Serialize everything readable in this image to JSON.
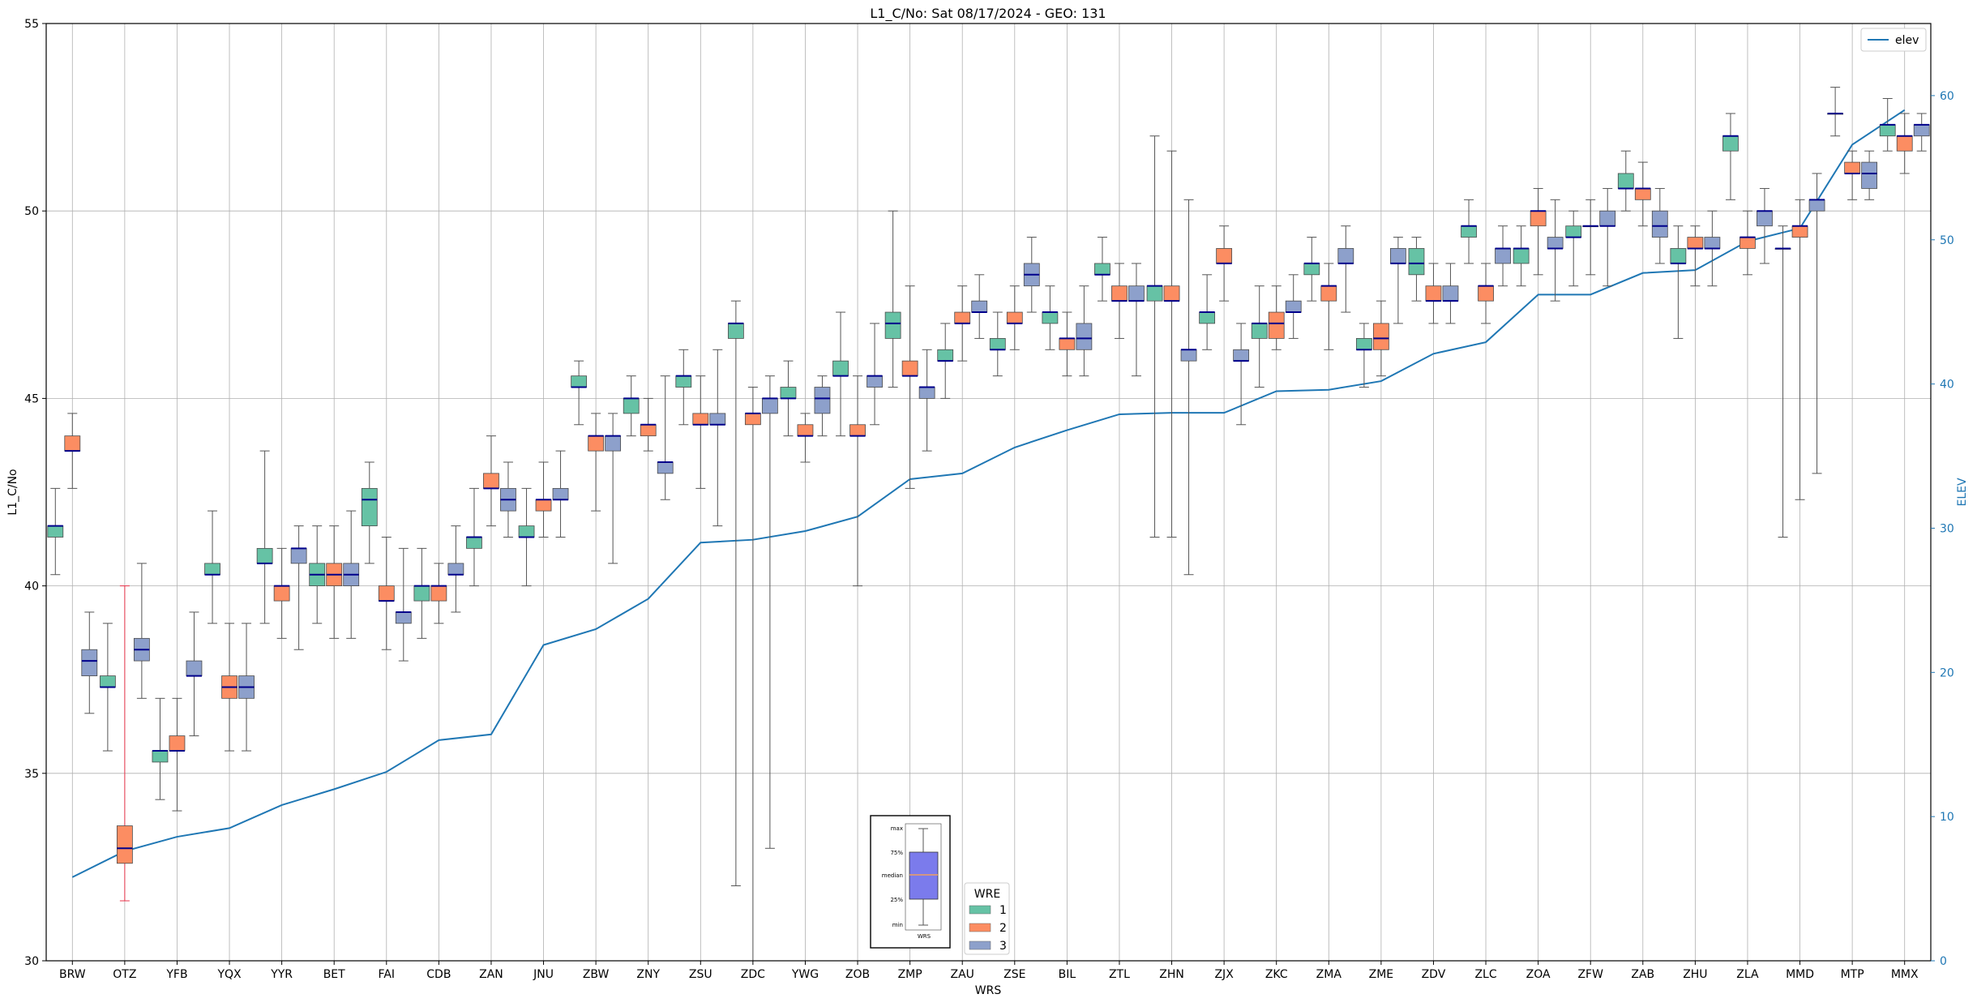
{
  "chart_data": {
    "type": "box",
    "title": "L1_C/No: Sat 08/17/2024 - GEO: 131",
    "xlabel": "WRS",
    "ylabel": "L1_C/No",
    "y2label": "ELEV",
    "ylim": [
      30,
      55
    ],
    "y2lim": [
      0,
      65
    ],
    "yticks": [
      30,
      35,
      40,
      45,
      50,
      55
    ],
    "y2ticks": [
      0,
      10,
      20,
      30,
      40,
      50,
      60
    ],
    "grid": true,
    "categories": [
      "BRW",
      "OTZ",
      "YFB",
      "YQX",
      "YYR",
      "BET",
      "FAI",
      "CDB",
      "ZAN",
      "JNU",
      "ZBW",
      "ZNY",
      "ZSU",
      "ZDC",
      "YWG",
      "ZOB",
      "ZMP",
      "ZAU",
      "ZSE",
      "BIL",
      "ZTL",
      "ZHN",
      "ZJX",
      "ZKC",
      "ZMA",
      "ZME",
      "ZDV",
      "ZLC",
      "ZOA",
      "ZFW",
      "ZAB",
      "ZHU",
      "ZLA",
      "MMD",
      "MTP",
      "MMX"
    ],
    "wre_colors": {
      "1": "#66c2a5",
      "2": "#fc8d62",
      "3": "#8da0cb"
    },
    "median_color": "#00008b",
    "whisker_color": "#555555",
    "outlier_whisker_color": "#e8344a",
    "boxes": [
      {
        "site": "BRW",
        "wre": 1,
        "min": 40.3,
        "q1": 41.3,
        "med": 41.6,
        "q3": 41.6,
        "max": 42.6
      },
      {
        "site": "BRW",
        "wre": 2,
        "min": 42.6,
        "q1": 43.6,
        "med": 43.6,
        "q3": 44.0,
        "max": 44.6
      },
      {
        "site": "BRW",
        "wre": 3,
        "min": 36.6,
        "q1": 37.6,
        "med": 38.0,
        "q3": 38.3,
        "max": 39.3
      },
      {
        "site": "OTZ",
        "wre": 1,
        "min": 35.6,
        "q1": 37.3,
        "med": 37.3,
        "q3": 37.6,
        "max": 39.0
      },
      {
        "site": "OTZ",
        "wre": 2,
        "min": 31.6,
        "q1": 32.6,
        "med": 33.0,
        "q3": 33.6,
        "max": 40.0,
        "whisker_color": "#e8344a"
      },
      {
        "site": "OTZ",
        "wre": 3,
        "min": 37.0,
        "q1": 38.0,
        "med": 38.3,
        "q3": 38.6,
        "max": 40.6
      },
      {
        "site": "YFB",
        "wre": 1,
        "min": 34.3,
        "q1": 35.3,
        "med": 35.6,
        "q3": 35.6,
        "max": 37.0
      },
      {
        "site": "YFB",
        "wre": 2,
        "min": 34.0,
        "q1": 35.6,
        "med": 35.6,
        "q3": 36.0,
        "max": 37.0
      },
      {
        "site": "YFB",
        "wre": 3,
        "min": 36.0,
        "q1": 37.6,
        "med": 37.6,
        "q3": 38.0,
        "max": 39.3
      },
      {
        "site": "YQX",
        "wre": 1,
        "min": 39.0,
        "q1": 40.3,
        "med": 40.3,
        "q3": 40.6,
        "max": 42.0
      },
      {
        "site": "YQX",
        "wre": 2,
        "min": 35.6,
        "q1": 37.0,
        "med": 37.3,
        "q3": 37.6,
        "max": 39.0
      },
      {
        "site": "YQX",
        "wre": 3,
        "min": 35.6,
        "q1": 37.0,
        "med": 37.3,
        "q3": 37.6,
        "max": 39.0
      },
      {
        "site": "YYR",
        "wre": 1,
        "min": 39.0,
        "q1": 40.6,
        "med": 40.6,
        "q3": 41.0,
        "max": 43.6
      },
      {
        "site": "YYR",
        "wre": 2,
        "min": 38.6,
        "q1": 39.6,
        "med": 40.0,
        "q3": 40.0,
        "max": 41.0
      },
      {
        "site": "YYR",
        "wre": 3,
        "min": 38.3,
        "q1": 40.6,
        "med": 41.0,
        "q3": 41.0,
        "max": 41.6
      },
      {
        "site": "BET",
        "wre": 1,
        "min": 39.0,
        "q1": 40.0,
        "med": 40.3,
        "q3": 40.6,
        "max": 41.6
      },
      {
        "site": "BET",
        "wre": 2,
        "min": 38.6,
        "q1": 40.0,
        "med": 40.3,
        "q3": 40.6,
        "max": 41.6
      },
      {
        "site": "BET",
        "wre": 3,
        "min": 38.6,
        "q1": 40.0,
        "med": 40.3,
        "q3": 40.6,
        "max": 42.0
      },
      {
        "site": "FAI",
        "wre": 1,
        "min": 40.6,
        "q1": 41.6,
        "med": 42.3,
        "q3": 42.6,
        "max": 43.3
      },
      {
        "site": "FAI",
        "wre": 2,
        "min": 38.3,
        "q1": 39.6,
        "med": 39.6,
        "q3": 40.0,
        "max": 41.3
      },
      {
        "site": "FAI",
        "wre": 3,
        "min": 38.0,
        "q1": 39.0,
        "med": 39.3,
        "q3": 39.3,
        "max": 41.0
      },
      {
        "site": "CDB",
        "wre": 1,
        "min": 38.6,
        "q1": 39.6,
        "med": 40.0,
        "q3": 40.0,
        "max": 41.0
      },
      {
        "site": "CDB",
        "wre": 2,
        "min": 39.0,
        "q1": 39.6,
        "med": 40.0,
        "q3": 40.0,
        "max": 40.6
      },
      {
        "site": "CDB",
        "wre": 3,
        "min": 39.3,
        "q1": 40.3,
        "med": 40.3,
        "q3": 40.6,
        "max": 41.6
      },
      {
        "site": "ZAN",
        "wre": 1,
        "min": 40.0,
        "q1": 41.0,
        "med": 41.3,
        "q3": 41.3,
        "max": 42.6
      },
      {
        "site": "ZAN",
        "wre": 2,
        "min": 41.6,
        "q1": 42.6,
        "med": 42.6,
        "q3": 43.0,
        "max": 44.0
      },
      {
        "site": "ZAN",
        "wre": 3,
        "min": 41.3,
        "q1": 42.0,
        "med": 42.3,
        "q3": 42.6,
        "max": 43.3
      },
      {
        "site": "JNU",
        "wre": 1,
        "min": 40.0,
        "q1": 41.3,
        "med": 41.3,
        "q3": 41.6,
        "max": 42.6
      },
      {
        "site": "JNU",
        "wre": 2,
        "min": 41.3,
        "q1": 42.0,
        "med": 42.3,
        "q3": 42.3,
        "max": 43.3
      },
      {
        "site": "JNU",
        "wre": 3,
        "min": 41.3,
        "q1": 42.3,
        "med": 42.3,
        "q3": 42.6,
        "max": 43.6
      },
      {
        "site": "ZBW",
        "wre": 1,
        "min": 44.3,
        "q1": 45.3,
        "med": 45.3,
        "q3": 45.6,
        "max": 46.0
      },
      {
        "site": "ZBW",
        "wre": 2,
        "min": 42.0,
        "q1": 43.6,
        "med": 44.0,
        "q3": 44.0,
        "max": 44.6
      },
      {
        "site": "ZBW",
        "wre": 3,
        "min": 40.6,
        "q1": 43.6,
        "med": 44.0,
        "q3": 44.0,
        "max": 44.6
      },
      {
        "site": "ZNY",
        "wre": 1,
        "min": 44.0,
        "q1": 44.6,
        "med": 45.0,
        "q3": 45.0,
        "max": 45.6
      },
      {
        "site": "ZNY",
        "wre": 2,
        "min": 43.6,
        "q1": 44.0,
        "med": 44.3,
        "q3": 44.3,
        "max": 45.0
      },
      {
        "site": "ZNY",
        "wre": 3,
        "min": 42.3,
        "q1": 43.0,
        "med": 43.3,
        "q3": 43.3,
        "max": 45.6
      },
      {
        "site": "ZSU",
        "wre": 1,
        "min": 44.3,
        "q1": 45.3,
        "med": 45.6,
        "q3": 45.6,
        "max": 46.3
      },
      {
        "site": "ZSU",
        "wre": 2,
        "min": 42.6,
        "q1": 44.3,
        "med": 44.3,
        "q3": 44.6,
        "max": 45.6
      },
      {
        "site": "ZSU",
        "wre": 3,
        "min": 41.6,
        "q1": 44.3,
        "med": 44.3,
        "q3": 44.6,
        "max": 46.3
      },
      {
        "site": "ZDC",
        "wre": 1,
        "min": 32.0,
        "q1": 46.6,
        "med": 47.0,
        "q3": 47.0,
        "max": 47.6
      },
      {
        "site": "ZDC",
        "wre": 2,
        "min": 30.0,
        "q1": 44.3,
        "med": 44.6,
        "q3": 44.6,
        "max": 45.3
      },
      {
        "site": "ZDC",
        "wre": 3,
        "min": 33.0,
        "q1": 44.6,
        "med": 45.0,
        "q3": 45.0,
        "max": 45.6
      },
      {
        "site": "YWG",
        "wre": 1,
        "min": 44.0,
        "q1": 45.0,
        "med": 45.0,
        "q3": 45.3,
        "max": 46.0
      },
      {
        "site": "YWG",
        "wre": 2,
        "min": 43.3,
        "q1": 44.0,
        "med": 44.0,
        "q3": 44.3,
        "max": 44.6
      },
      {
        "site": "YWG",
        "wre": 3,
        "min": 44.0,
        "q1": 44.6,
        "med": 45.0,
        "q3": 45.3,
        "max": 45.6
      },
      {
        "site": "ZOB",
        "wre": 1,
        "min": 44.0,
        "q1": 45.6,
        "med": 45.6,
        "q3": 46.0,
        "max": 47.3
      },
      {
        "site": "ZOB",
        "wre": 2,
        "min": 40.0,
        "q1": 44.0,
        "med": 44.0,
        "q3": 44.3,
        "max": 45.6
      },
      {
        "site": "ZOB",
        "wre": 3,
        "min": 44.3,
        "q1": 45.3,
        "med": 45.6,
        "q3": 45.6,
        "max": 47.0
      },
      {
        "site": "ZMP",
        "wre": 1,
        "min": 45.3,
        "q1": 46.6,
        "med": 47.0,
        "q3": 47.3,
        "max": 50.0
      },
      {
        "site": "ZMP",
        "wre": 2,
        "min": 42.6,
        "q1": 45.6,
        "med": 45.6,
        "q3": 46.0,
        "max": 48.0
      },
      {
        "site": "ZMP",
        "wre": 3,
        "min": 43.6,
        "q1": 45.0,
        "med": 45.3,
        "q3": 45.3,
        "max": 46.3
      },
      {
        "site": "ZAU",
        "wre": 1,
        "min": 45.0,
        "q1": 46.0,
        "med": 46.0,
        "q3": 46.3,
        "max": 47.0
      },
      {
        "site": "ZAU",
        "wre": 2,
        "min": 46.0,
        "q1": 47.0,
        "med": 47.0,
        "q3": 47.3,
        "max": 48.0
      },
      {
        "site": "ZAU",
        "wre": 3,
        "min": 46.6,
        "q1": 47.3,
        "med": 47.3,
        "q3": 47.6,
        "max": 48.3
      },
      {
        "site": "ZSE",
        "wre": 1,
        "min": 45.6,
        "q1": 46.3,
        "med": 46.3,
        "q3": 46.6,
        "max": 47.3
      },
      {
        "site": "ZSE",
        "wre": 2,
        "min": 46.3,
        "q1": 47.0,
        "med": 47.0,
        "q3": 47.3,
        "max": 48.0
      },
      {
        "site": "ZSE",
        "wre": 3,
        "min": 47.3,
        "q1": 48.0,
        "med": 48.3,
        "q3": 48.6,
        "max": 49.3
      },
      {
        "site": "BIL",
        "wre": 1,
        "min": 46.3,
        "q1": 47.0,
        "med": 47.3,
        "q3": 47.3,
        "max": 48.0
      },
      {
        "site": "BIL",
        "wre": 2,
        "min": 45.6,
        "q1": 46.3,
        "med": 46.6,
        "q3": 46.6,
        "max": 47.3
      },
      {
        "site": "BIL",
        "wre": 3,
        "min": 45.6,
        "q1": 46.3,
        "med": 46.6,
        "q3": 47.0,
        "max": 48.0
      },
      {
        "site": "ZTL",
        "wre": 1,
        "min": 47.6,
        "q1": 48.3,
        "med": 48.3,
        "q3": 48.6,
        "max": 49.3
      },
      {
        "site": "ZTL",
        "wre": 2,
        "min": 46.6,
        "q1": 47.6,
        "med": 47.6,
        "q3": 48.0,
        "max": 48.6
      },
      {
        "site": "ZTL",
        "wre": 3,
        "min": 45.6,
        "q1": 47.6,
        "med": 47.6,
        "q3": 48.0,
        "max": 48.6
      },
      {
        "site": "ZHN",
        "wre": 1,
        "min": 41.3,
        "q1": 47.6,
        "med": 48.0,
        "q3": 48.0,
        "max": 52.0
      },
      {
        "site": "ZHN",
        "wre": 2,
        "min": 41.3,
        "q1": 47.6,
        "med": 47.6,
        "q3": 48.0,
        "max": 51.6
      },
      {
        "site": "ZHN",
        "wre": 3,
        "min": 40.3,
        "q1": 46.0,
        "med": 46.3,
        "q3": 46.3,
        "max": 50.3
      },
      {
        "site": "ZJX",
        "wre": 1,
        "min": 46.3,
        "q1": 47.0,
        "med": 47.3,
        "q3": 47.3,
        "max": 48.3
      },
      {
        "site": "ZJX",
        "wre": 2,
        "min": 47.6,
        "q1": 48.6,
        "med": 48.6,
        "q3": 49.0,
        "max": 49.6
      },
      {
        "site": "ZJX",
        "wre": 3,
        "min": 44.3,
        "q1": 46.0,
        "med": 46.0,
        "q3": 46.3,
        "max": 47.0
      },
      {
        "site": "ZKC",
        "wre": 1,
        "min": 45.3,
        "q1": 46.6,
        "med": 47.0,
        "q3": 47.0,
        "max": 48.0
      },
      {
        "site": "ZKC",
        "wre": 2,
        "min": 46.3,
        "q1": 46.6,
        "med": 47.0,
        "q3": 47.3,
        "max": 48.0
      },
      {
        "site": "ZKC",
        "wre": 3,
        "min": 46.6,
        "q1": 47.3,
        "med": 47.3,
        "q3": 47.6,
        "max": 48.3
      },
      {
        "site": "ZMA",
        "wre": 1,
        "min": 47.6,
        "q1": 48.3,
        "med": 48.6,
        "q3": 48.6,
        "max": 49.3
      },
      {
        "site": "ZMA",
        "wre": 2,
        "min": 46.3,
        "q1": 47.6,
        "med": 48.0,
        "q3": 48.0,
        "max": 48.6
      },
      {
        "site": "ZMA",
        "wre": 3,
        "min": 47.3,
        "q1": 48.6,
        "med": 48.6,
        "q3": 49.0,
        "max": 49.6
      },
      {
        "site": "ZME",
        "wre": 1,
        "min": 45.3,
        "q1": 46.3,
        "med": 46.3,
        "q3": 46.6,
        "max": 47.0
      },
      {
        "site": "ZME",
        "wre": 2,
        "min": 45.6,
        "q1": 46.3,
        "med": 46.6,
        "q3": 47.0,
        "max": 47.6
      },
      {
        "site": "ZME",
        "wre": 3,
        "min": 47.0,
        "q1": 48.6,
        "med": 48.6,
        "q3": 49.0,
        "max": 49.3
      },
      {
        "site": "ZDV",
        "wre": 1,
        "min": 47.6,
        "q1": 48.3,
        "med": 48.6,
        "q3": 49.0,
        "max": 49.3
      },
      {
        "site": "ZDV",
        "wre": 2,
        "min": 47.0,
        "q1": 47.6,
        "med": 47.6,
        "q3": 48.0,
        "max": 48.6
      },
      {
        "site": "ZDV",
        "wre": 3,
        "min": 47.0,
        "q1": 47.6,
        "med": 47.6,
        "q3": 48.0,
        "max": 48.6
      },
      {
        "site": "ZLC",
        "wre": 1,
        "min": 48.6,
        "q1": 49.3,
        "med": 49.6,
        "q3": 49.6,
        "max": 50.3
      },
      {
        "site": "ZLC",
        "wre": 2,
        "min": 47.0,
        "q1": 47.6,
        "med": 48.0,
        "q3": 48.0,
        "max": 48.6
      },
      {
        "site": "ZLC",
        "wre": 3,
        "min": 48.0,
        "q1": 48.6,
        "med": 49.0,
        "q3": 49.0,
        "max": 49.6
      },
      {
        "site": "ZOA",
        "wre": 1,
        "min": 48.0,
        "q1": 48.6,
        "med": 49.0,
        "q3": 49.0,
        "max": 49.6
      },
      {
        "site": "ZOA",
        "wre": 2,
        "min": 48.3,
        "q1": 49.6,
        "med": 50.0,
        "q3": 50.0,
        "max": 50.6
      },
      {
        "site": "ZOA",
        "wre": 3,
        "min": 47.6,
        "q1": 49.0,
        "med": 49.0,
        "q3": 49.3,
        "max": 50.3
      },
      {
        "site": "ZFW",
        "wre": 1,
        "min": 48.0,
        "q1": 49.3,
        "med": 49.3,
        "q3": 49.6,
        "max": 50.0
      },
      {
        "site": "ZFW",
        "wre": 2,
        "min": 48.3,
        "q1": 49.6,
        "med": 49.6,
        "q3": 49.6,
        "max": 50.3
      },
      {
        "site": "ZFW",
        "wre": 3,
        "min": 48.0,
        "q1": 49.6,
        "med": 49.6,
        "q3": 50.0,
        "max": 50.6
      },
      {
        "site": "ZAB",
        "wre": 1,
        "min": 50.0,
        "q1": 50.6,
        "med": 50.6,
        "q3": 51.0,
        "max": 51.6
      },
      {
        "site": "ZAB",
        "wre": 2,
        "min": 49.6,
        "q1": 50.3,
        "med": 50.6,
        "q3": 50.6,
        "max": 51.3
      },
      {
        "site": "ZAB",
        "wre": 3,
        "min": 48.6,
        "q1": 49.3,
        "med": 49.6,
        "q3": 50.0,
        "max": 50.6
      },
      {
        "site": "ZHU",
        "wre": 1,
        "min": 46.6,
        "q1": 48.6,
        "med": 48.6,
        "q3": 49.0,
        "max": 49.6
      },
      {
        "site": "ZHU",
        "wre": 2,
        "min": 48.0,
        "q1": 49.0,
        "med": 49.0,
        "q3": 49.3,
        "max": 49.6
      },
      {
        "site": "ZHU",
        "wre": 3,
        "min": 48.0,
        "q1": 49.0,
        "med": 49.0,
        "q3": 49.3,
        "max": 50.0
      },
      {
        "site": "ZLA",
        "wre": 1,
        "min": 50.3,
        "q1": 51.6,
        "med": 52.0,
        "q3": 52.0,
        "max": 52.6
      },
      {
        "site": "ZLA",
        "wre": 2,
        "min": 48.3,
        "q1": 49.0,
        "med": 49.3,
        "q3": 49.3,
        "max": 50.0
      },
      {
        "site": "ZLA",
        "wre": 3,
        "min": 48.6,
        "q1": 49.6,
        "med": 50.0,
        "q3": 50.0,
        "max": 50.6
      },
      {
        "site": "MMD",
        "wre": 1,
        "min": 41.3,
        "q1": 49.0,
        "med": 49.0,
        "q3": 49.0,
        "max": 49.6
      },
      {
        "site": "MMD",
        "wre": 2,
        "min": 42.3,
        "q1": 49.3,
        "med": 49.6,
        "q3": 49.6,
        "max": 50.3
      },
      {
        "site": "MMD",
        "wre": 3,
        "min": 43.0,
        "q1": 50.0,
        "med": 50.3,
        "q3": 50.3,
        "max": 51.0
      },
      {
        "site": "MTP",
        "wre": 1,
        "min": 52.0,
        "q1": 52.6,
        "med": 52.6,
        "q3": 52.6,
        "max": 53.3
      },
      {
        "site": "MTP",
        "wre": 2,
        "min": 50.3,
        "q1": 51.0,
        "med": 51.0,
        "q3": 51.3,
        "max": 51.6
      },
      {
        "site": "MTP",
        "wre": 3,
        "min": 50.3,
        "q1": 50.6,
        "med": 51.0,
        "q3": 51.3,
        "max": 51.6
      },
      {
        "site": "MMX",
        "wre": 1,
        "min": 51.6,
        "q1": 52.0,
        "med": 52.3,
        "q3": 52.3,
        "max": 53.0
      },
      {
        "site": "MMX",
        "wre": 2,
        "min": 51.0,
        "q1": 51.6,
        "med": 52.0,
        "q3": 52.0,
        "max": 52.6
      },
      {
        "site": "MMX",
        "wre": 3,
        "min": 51.6,
        "q1": 52.0,
        "med": 52.3,
        "q3": 52.3,
        "max": 52.6
      }
    ],
    "elev_series": {
      "name": "elev",
      "color": "#1f77b4",
      "values": [
        5.8,
        7.6,
        8.6,
        9.2,
        10.8,
        11.9,
        13.1,
        15.3,
        15.7,
        21.9,
        23.0,
        25.1,
        29.0,
        29.2,
        29.8,
        30.8,
        33.4,
        33.8,
        35.6,
        36.8,
        37.9,
        38.0,
        38.0,
        39.5,
        39.6,
        40.2,
        42.1,
        42.9,
        46.2,
        46.2,
        47.7,
        47.9,
        49.9,
        50.8,
        56.6,
        59.0
      ]
    },
    "legend_elev": {
      "label": "elev",
      "placement": "top-right"
    },
    "legend_wre": {
      "title": "WRE",
      "entries": [
        {
          "label": "1",
          "color": "#66c2a5"
        },
        {
          "label": "2",
          "color": "#fc8d62"
        },
        {
          "label": "3",
          "color": "#8da0cb"
        }
      ]
    },
    "inset_key": {
      "labels": [
        "max",
        "75%",
        "median",
        "25%",
        "min"
      ],
      "xlabel": "WRS",
      "box_color": "#7b7bec",
      "median_color": "#f0a060"
    }
  }
}
